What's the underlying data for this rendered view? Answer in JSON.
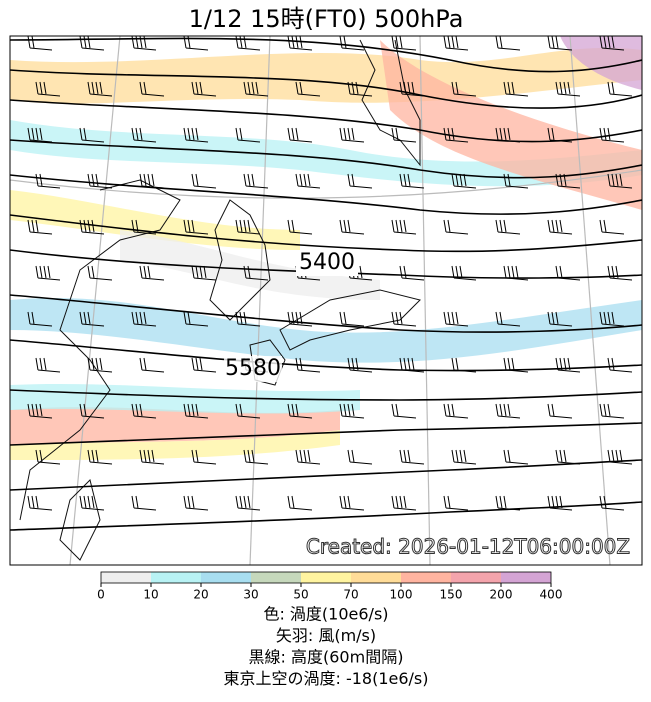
{
  "title": "1/12  15時(FT0)    500hPa",
  "map": {
    "contour_labels": [
      "5400",
      "5580"
    ],
    "created": "Created: 2026-01-12T06:00:00Z"
  },
  "colorbar": {
    "ticks": [
      0,
      10,
      20,
      30,
      50,
      70,
      100,
      150,
      200,
      400
    ],
    "colors": [
      "#eeeeee",
      "#b8f2f4",
      "#a8def0",
      "#c6d8bc",
      "#fff4a0",
      "#ffdc98",
      "#ffb4a0",
      "#f4a4ac",
      "#d4a4d4"
    ]
  },
  "legend": [
    "色: 渦度(10e6/s)",
    "矢羽: 風(m/s)",
    "黒線: 高度(60m間隔)",
    "東京上空の渦度: -18(1e6/s)"
  ]
}
